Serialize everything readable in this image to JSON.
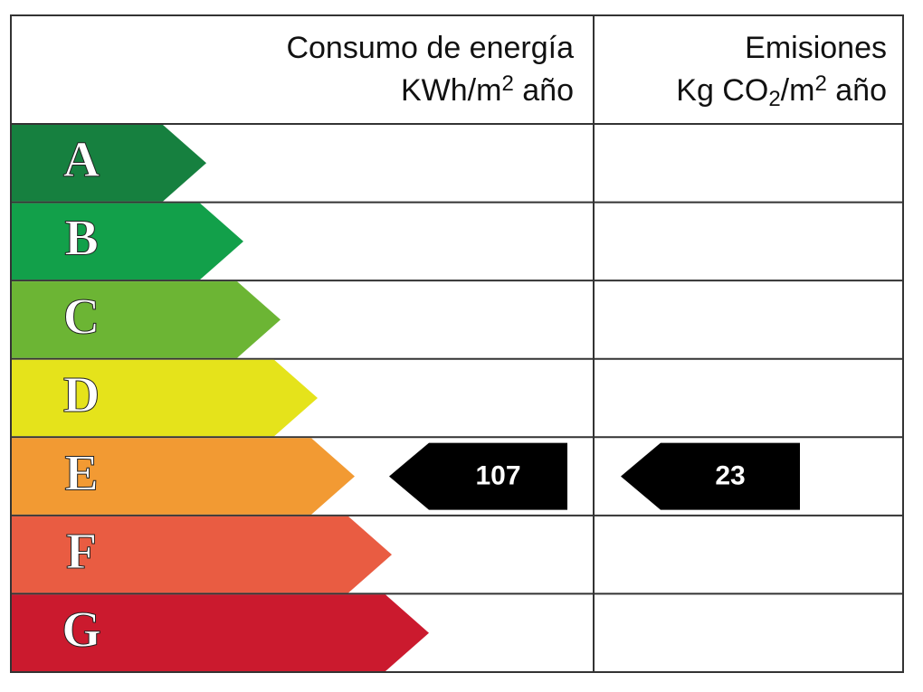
{
  "header": {
    "energy": {
      "title": "Consumo de energía",
      "unit": [
        "KWh/m",
        "2",
        " año"
      ]
    },
    "emissions": {
      "title": "Emisiones",
      "unit": [
        "Kg CO",
        "2",
        "/m",
        "2",
        " año"
      ]
    }
  },
  "classes": [
    {
      "letter": "A",
      "color": "#16803f"
    },
    {
      "letter": "B",
      "color": "#12a04a"
    },
    {
      "letter": "C",
      "color": "#6cb534"
    },
    {
      "letter": "D",
      "color": "#e5e31b"
    },
    {
      "letter": "E",
      "color": "#f29a33"
    },
    {
      "letter": "F",
      "color": "#e95c42"
    },
    {
      "letter": "G",
      "color": "#cb1a2e"
    }
  ],
  "ratings": {
    "energy": {
      "class": "E",
      "value": 107
    },
    "emissions": {
      "class": "E",
      "value": 23
    }
  }
}
